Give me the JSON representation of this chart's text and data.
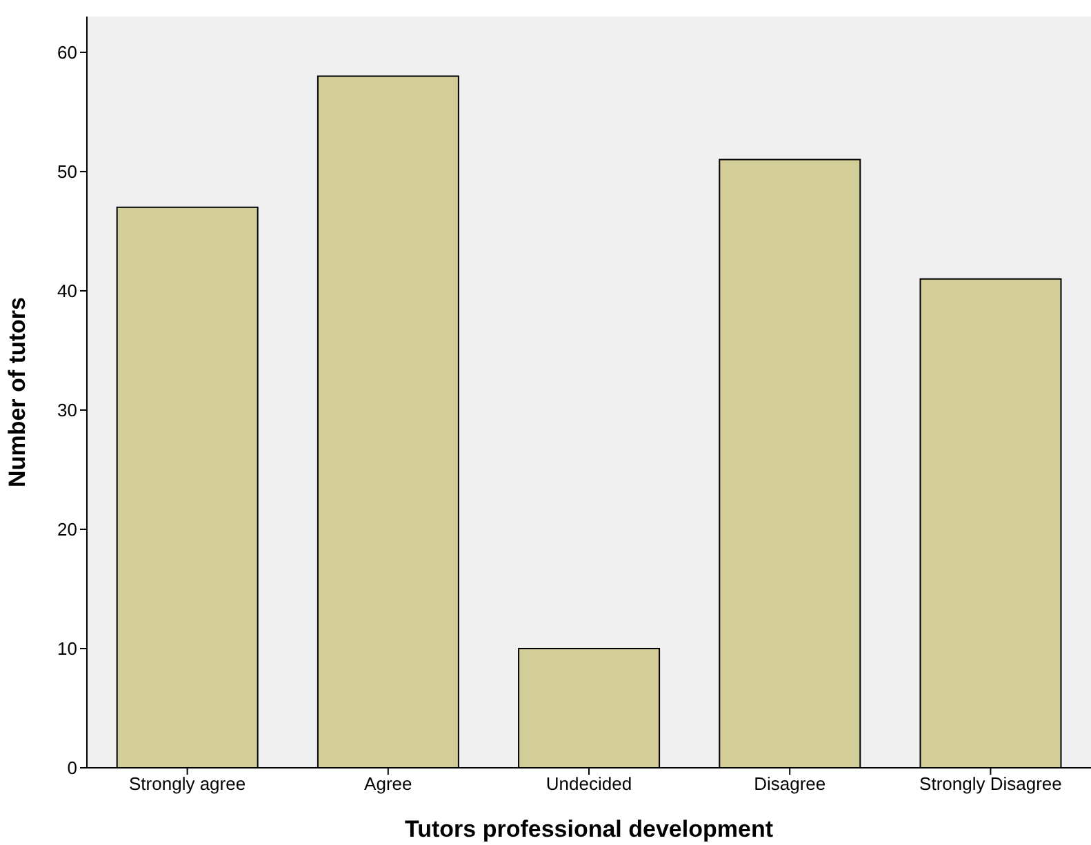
{
  "chart_data": {
    "type": "bar",
    "xlabel": "Tutors professional development",
    "ylabel": "Number of tutors",
    "categories": [
      "Strongly agree",
      "Agree",
      "Undecided",
      "Disagree",
      "Strongly Disagree"
    ],
    "values": [
      47,
      58,
      10,
      51,
      41
    ],
    "color": "#d3ce97",
    "ylim": [
      0,
      63
    ],
    "yticks": [
      0,
      10,
      20,
      30,
      40,
      50,
      60
    ],
    "grid": false,
    "legend": false
  }
}
